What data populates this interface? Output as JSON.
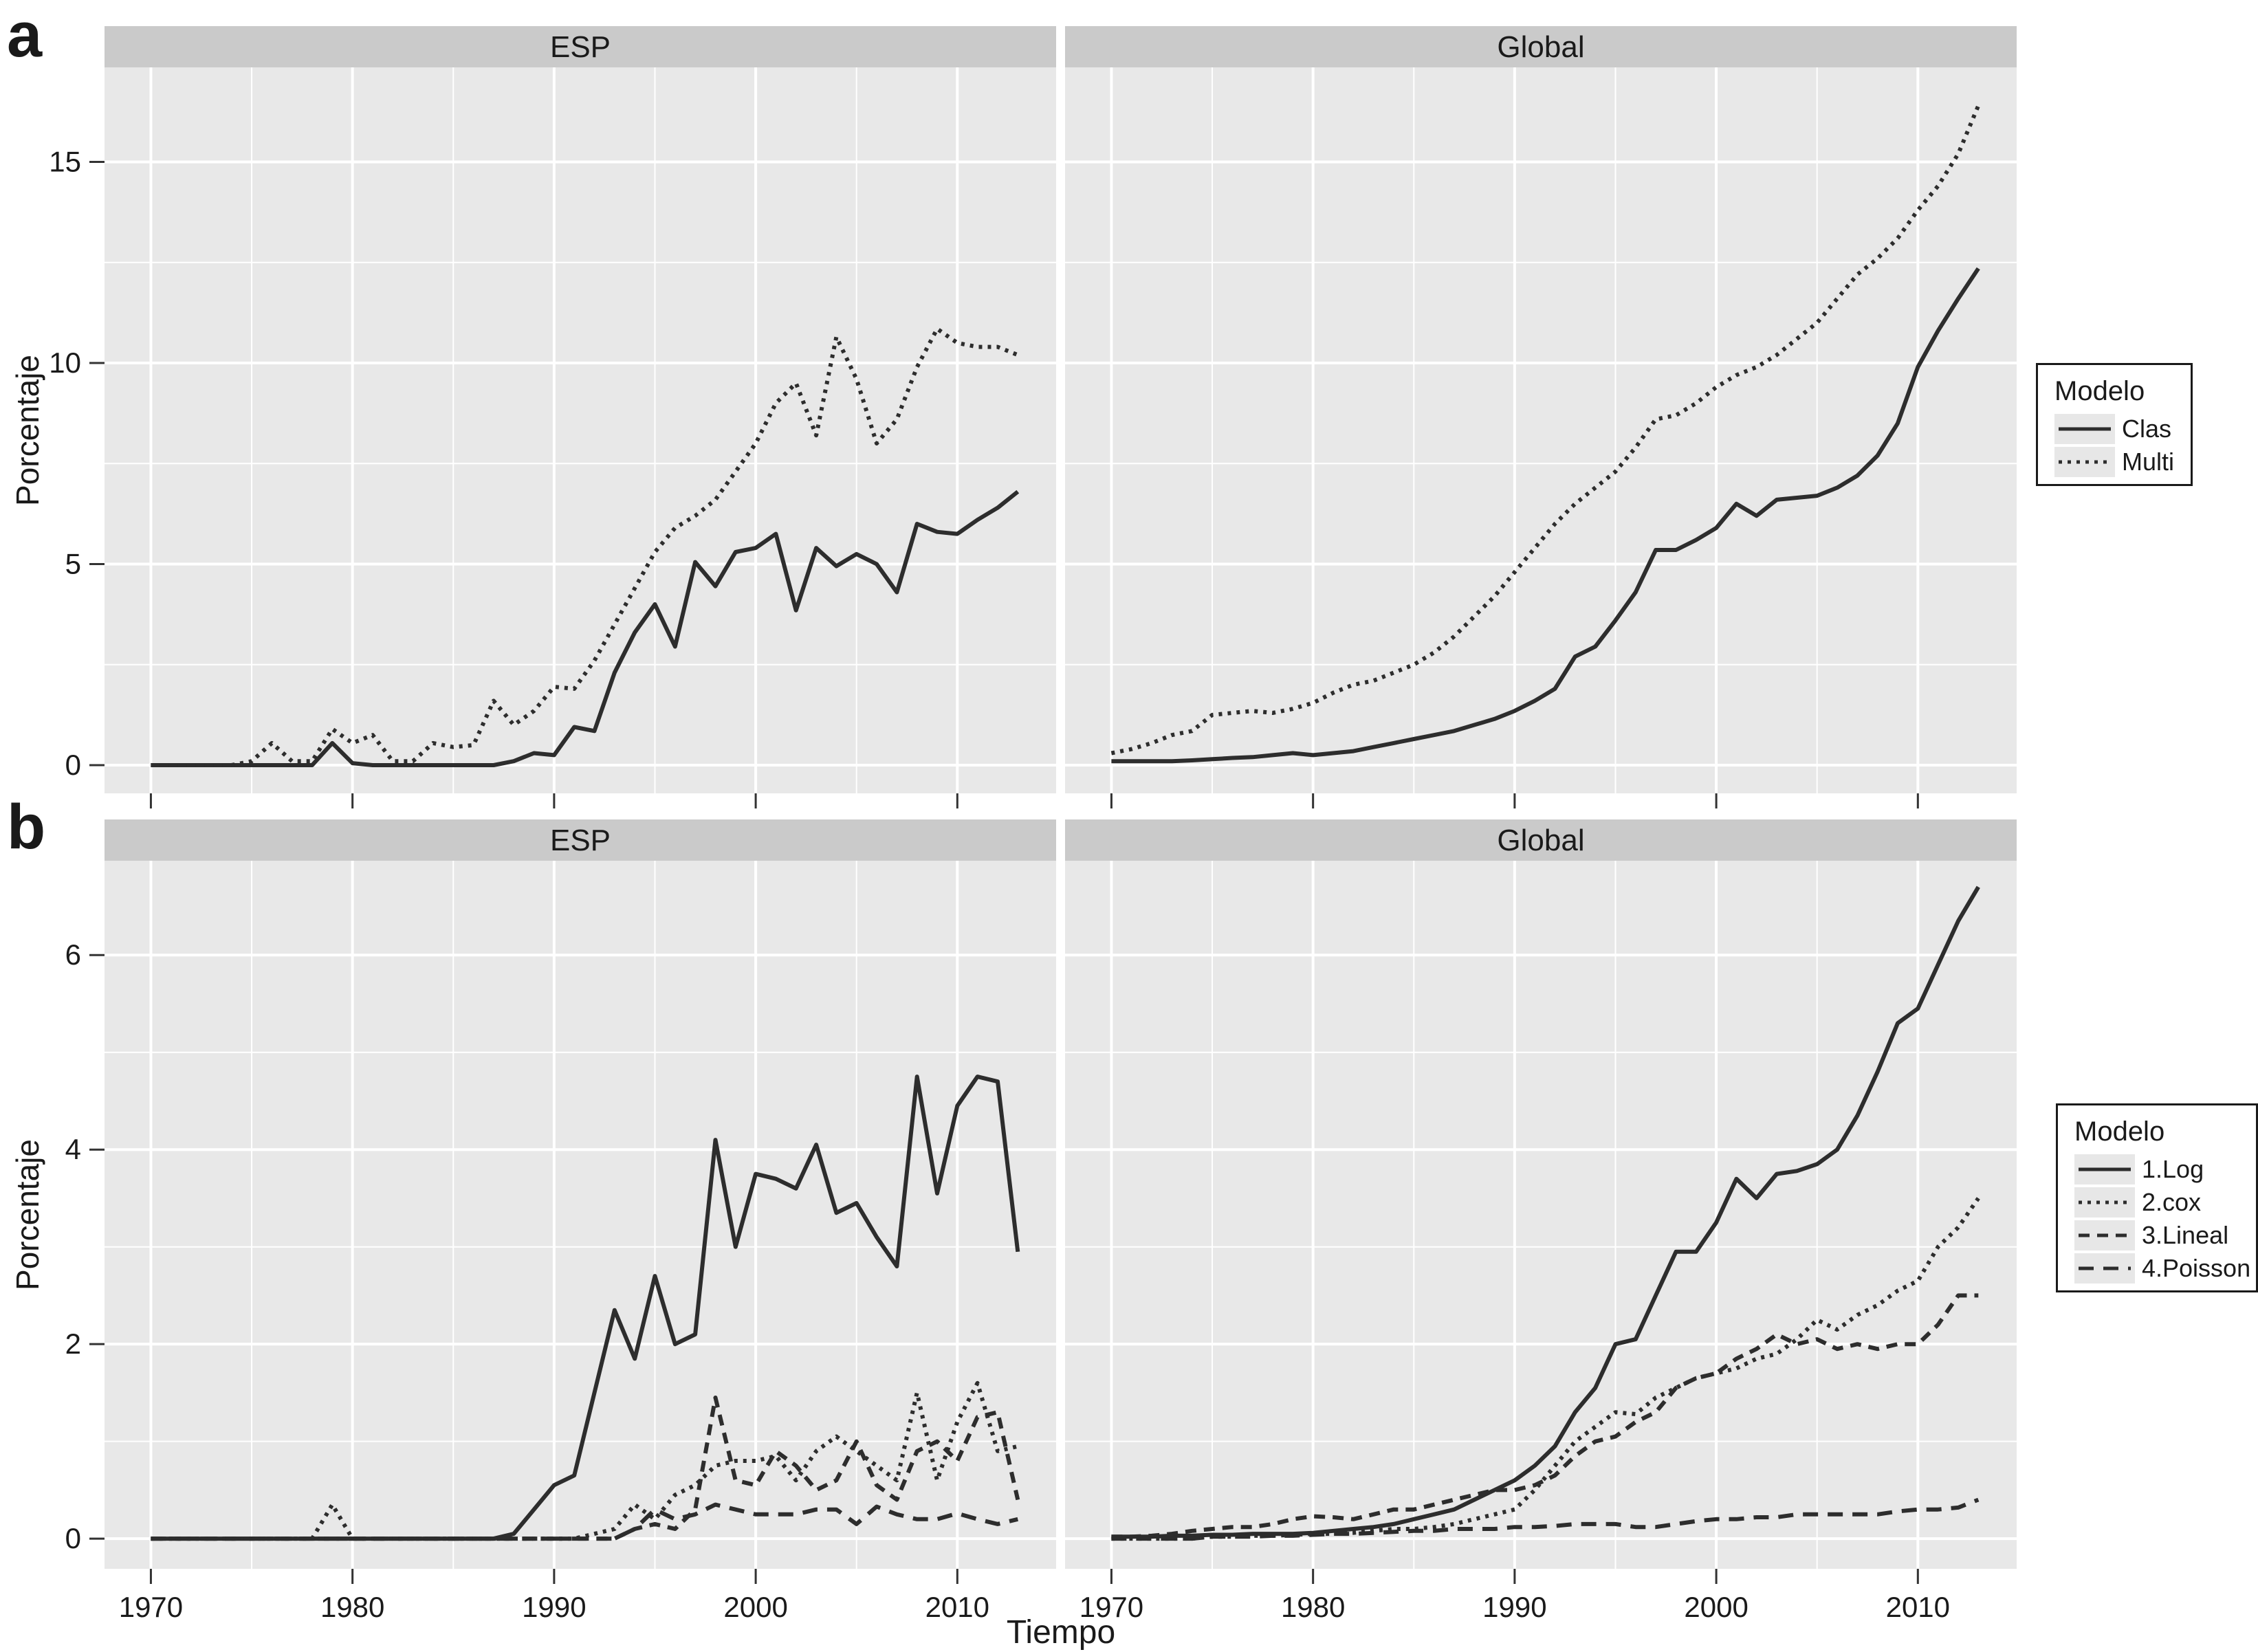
{
  "figure": {
    "panel_a_label": "a",
    "panel_b_label": "b"
  },
  "colors": {
    "strip_bg": "#cacaca",
    "panel_bg": "#e8e8e8",
    "grid": "#ffffff",
    "line": "#2d2d2d",
    "text": "#1a1a1a",
    "tick": "#333333",
    "legend_border": "#1a1a1a",
    "legend_bg": "#ffffff",
    "legend_key_bg": "#e7e7e7"
  },
  "chart_data": {
    "type": "line",
    "x_label": "Tiempo",
    "y_label": "Porcentaje",
    "years": [
      1970,
      1971,
      1972,
      1973,
      1974,
      1975,
      1976,
      1977,
      1978,
      1979,
      1980,
      1981,
      1982,
      1983,
      1984,
      1985,
      1986,
      1987,
      1988,
      1989,
      1990,
      1991,
      1992,
      1993,
      1994,
      1995,
      1996,
      1997,
      1998,
      1999,
      2000,
      2001,
      2002,
      2003,
      2004,
      2005,
      2006,
      2007,
      2008,
      2009,
      2010,
      2011,
      2012,
      2013
    ],
    "x_ticks": [
      1970,
      1980,
      1990,
      2000,
      2010
    ],
    "x_minor_ticks": [
      1975,
      1985,
      1995,
      2005
    ],
    "xlim": [
      1967.7,
      2014.9
    ],
    "panels": [
      {
        "id": "a",
        "facets": [
          "ESP",
          "Global"
        ],
        "y_ticks": [
          0,
          5,
          10,
          15
        ],
        "y_minor_ticks": [
          2.5,
          7.5,
          12.5
        ],
        "ylim": [
          -0.7,
          17.35
        ],
        "x_tick_labels_visible": false,
        "legend": {
          "title": "Modelo",
          "entries": [
            {
              "label": "Clas",
              "linetype": "solid"
            },
            {
              "label": "Multi",
              "linetype": "dotted"
            }
          ]
        },
        "series": [
          {
            "name": "Clas",
            "facet": "ESP",
            "linetype": "solid",
            "values": [
              0,
              0,
              0,
              0,
              0,
              0,
              0,
              0,
              0,
              0.55,
              0.05,
              0,
              0,
              0,
              0,
              0,
              0,
              0,
              0.1,
              0.3,
              0.25,
              0.95,
              0.85,
              2.3,
              3.3,
              4.0,
              2.95,
              5.05,
              4.45,
              5.3,
              5.4,
              5.75,
              3.85,
              5.4,
              4.95,
              5.25,
              5.0,
              4.3,
              6.0,
              5.8,
              5.75,
              6.1,
              6.4,
              6.8
            ]
          },
          {
            "name": "Multi",
            "facet": "ESP",
            "linetype": "dotted",
            "values": [
              0,
              0,
              0,
              0,
              0,
              0.1,
              0.55,
              0.1,
              0.1,
              0.9,
              0.55,
              0.75,
              0.1,
              0.1,
              0.55,
              0.45,
              0.5,
              1.6,
              1.0,
              1.35,
              1.95,
              1.9,
              2.6,
              3.5,
              4.4,
              5.3,
              5.9,
              6.2,
              6.6,
              7.3,
              8.0,
              9.0,
              9.5,
              8.2,
              10.65,
              9.6,
              8.0,
              8.6,
              9.9,
              10.85,
              10.5,
              10.4,
              10.4,
              10.2
            ]
          },
          {
            "name": "Clas",
            "facet": "Global",
            "linetype": "solid",
            "values": [
              0.1,
              0.1,
              0.1,
              0.1,
              0.12,
              0.15,
              0.18,
              0.2,
              0.25,
              0.3,
              0.25,
              0.3,
              0.35,
              0.45,
              0.55,
              0.65,
              0.75,
              0.85,
              1.0,
              1.15,
              1.35,
              1.6,
              1.9,
              2.7,
              2.95,
              3.6,
              4.3,
              5.35,
              5.35,
              5.6,
              5.9,
              6.5,
              6.2,
              6.6,
              6.65,
              6.7,
              6.9,
              7.2,
              7.7,
              8.5,
              9.9,
              10.8,
              11.6,
              12.35
            ]
          },
          {
            "name": "Multi",
            "facet": "Global",
            "linetype": "dotted",
            "values": [
              0.3,
              0.4,
              0.55,
              0.75,
              0.85,
              1.25,
              1.3,
              1.35,
              1.3,
              1.4,
              1.55,
              1.8,
              2.0,
              2.1,
              2.3,
              2.5,
              2.8,
              3.2,
              3.7,
              4.2,
              4.8,
              5.4,
              6.0,
              6.5,
              6.9,
              7.3,
              7.9,
              8.6,
              8.7,
              9.0,
              9.4,
              9.7,
              9.9,
              10.2,
              10.6,
              11.0,
              11.6,
              12.2,
              12.6,
              13.1,
              13.8,
              14.4,
              15.2,
              16.4
            ]
          }
        ]
      },
      {
        "id": "b",
        "facets": [
          "ESP",
          "Global"
        ],
        "y_ticks": [
          0,
          2,
          4,
          6
        ],
        "y_minor_ticks": [
          1,
          3,
          5
        ],
        "ylim": [
          -0.31,
          6.97
        ],
        "x_tick_labels_visible": true,
        "legend": {
          "title": "Modelo",
          "entries": [
            {
              "label": "1.Log",
              "linetype": "solid"
            },
            {
              "label": "2.cox",
              "linetype": "dotted"
            },
            {
              "label": "3.Lineal",
              "linetype": "dashed"
            },
            {
              "label": "4.Poisson",
              "linetype": "longdash"
            }
          ]
        },
        "series": [
          {
            "name": "1.Log",
            "facet": "ESP",
            "linetype": "solid",
            "values": [
              0,
              0,
              0,
              0,
              0,
              0,
              0,
              0,
              0,
              0,
              0,
              0,
              0,
              0,
              0,
              0,
              0,
              0,
              0.05,
              0.3,
              0.55,
              0.65,
              1.5,
              2.35,
              1.85,
              2.7,
              2.0,
              2.1,
              4.1,
              3.0,
              3.75,
              3.7,
              3.6,
              4.05,
              3.35,
              3.45,
              3.1,
              2.8,
              4.75,
              3.55,
              4.45,
              4.75,
              4.7,
              2.95
            ]
          },
          {
            "name": "2.cox",
            "facet": "ESP",
            "linetype": "dotted",
            "values": [
              0,
              0,
              0,
              0,
              0,
              0,
              0,
              0,
              0,
              0.35,
              0,
              0,
              0,
              0,
              0,
              0,
              0,
              0,
              0,
              0,
              0,
              0,
              0.05,
              0.1,
              0.35,
              0.2,
              0.45,
              0.55,
              0.75,
              0.8,
              0.8,
              0.85,
              0.6,
              0.9,
              1.05,
              0.9,
              0.75,
              0.6,
              1.5,
              0.6,
              1.2,
              1.6,
              0.9,
              0.95
            ]
          },
          {
            "name": "3.Lineal",
            "facet": "ESP",
            "linetype": "dashed",
            "values": [
              0,
              0,
              0,
              0,
              0,
              0,
              0,
              0,
              0,
              0,
              0,
              0,
              0,
              0,
              0,
              0,
              0,
              0,
              0,
              0,
              0,
              0,
              0,
              0,
              0.1,
              0.15,
              0.1,
              0.3,
              1.45,
              0.6,
              0.55,
              0.9,
              0.75,
              0.5,
              0.6,
              1.0,
              0.55,
              0.4,
              0.9,
              1.0,
              0.8,
              1.25,
              1.3,
              0.4
            ]
          },
          {
            "name": "4.Poisson",
            "facet": "ESP",
            "linetype": "longdash",
            "values": [
              0,
              0,
              0,
              0,
              0,
              0,
              0,
              0,
              0,
              0,
              0,
              0,
              0,
              0,
              0,
              0,
              0,
              0,
              0,
              0,
              0,
              0,
              0,
              0,
              0.1,
              0.3,
              0.2,
              0.25,
              0.35,
              0.3,
              0.25,
              0.25,
              0.25,
              0.3,
              0.3,
              0.15,
              0.33,
              0.25,
              0.2,
              0.2,
              0.26,
              0.2,
              0.15,
              0.2
            ]
          },
          {
            "name": "1.Log",
            "facet": "Global",
            "linetype": "solid",
            "values": [
              0.02,
              0.02,
              0.02,
              0.03,
              0.03,
              0.04,
              0.04,
              0.05,
              0.05,
              0.05,
              0.06,
              0.08,
              0.1,
              0.12,
              0.15,
              0.2,
              0.25,
              0.3,
              0.4,
              0.5,
              0.6,
              0.75,
              0.95,
              1.3,
              1.55,
              2.0,
              2.05,
              2.5,
              2.95,
              2.95,
              3.25,
              3.7,
              3.5,
              3.75,
              3.78,
              3.85,
              4.0,
              4.35,
              4.8,
              5.3,
              5.45,
              5.9,
              6.35,
              6.7
            ]
          },
          {
            "name": "2.cox",
            "facet": "Global",
            "linetype": "dotted",
            "values": [
              0,
              0,
              0,
              0,
              0,
              0.02,
              0.02,
              0.03,
              0.03,
              0.04,
              0.05,
              0.05,
              0.06,
              0.08,
              0.1,
              0.1,
              0.12,
              0.15,
              0.2,
              0.25,
              0.3,
              0.5,
              0.75,
              1.0,
              1.15,
              1.3,
              1.28,
              1.45,
              1.55,
              1.65,
              1.7,
              1.75,
              1.85,
              1.9,
              2.05,
              2.25,
              2.15,
              2.3,
              2.4,
              2.55,
              2.65,
              3.0,
              3.2,
              3.5
            ]
          },
          {
            "name": "3.Lineal",
            "facet": "Global",
            "linetype": "dashed",
            "values": [
              0.02,
              0.02,
              0.03,
              0.05,
              0.08,
              0.1,
              0.12,
              0.12,
              0.15,
              0.2,
              0.23,
              0.22,
              0.2,
              0.25,
              0.3,
              0.3,
              0.35,
              0.4,
              0.45,
              0.5,
              0.5,
              0.55,
              0.65,
              0.85,
              1.0,
              1.05,
              1.2,
              1.3,
              1.55,
              1.65,
              1.7,
              1.85,
              1.95,
              2.1,
              2.0,
              2.05,
              1.95,
              2.0,
              1.95,
              2.0,
              2.0,
              2.2,
              2.5,
              2.5
            ]
          },
          {
            "name": "4.Poisson",
            "facet": "Global",
            "linetype": "longdash",
            "values": [
              0,
              0,
              0,
              0,
              0,
              0.02,
              0.02,
              0.02,
              0.03,
              0.03,
              0.04,
              0.05,
              0.05,
              0.06,
              0.07,
              0.08,
              0.08,
              0.1,
              0.1,
              0.1,
              0.12,
              0.12,
              0.13,
              0.15,
              0.15,
              0.15,
              0.12,
              0.12,
              0.15,
              0.18,
              0.2,
              0.2,
              0.22,
              0.22,
              0.25,
              0.25,
              0.25,
              0.25,
              0.25,
              0.28,
              0.3,
              0.3,
              0.32,
              0.4
            ]
          }
        ]
      }
    ]
  }
}
